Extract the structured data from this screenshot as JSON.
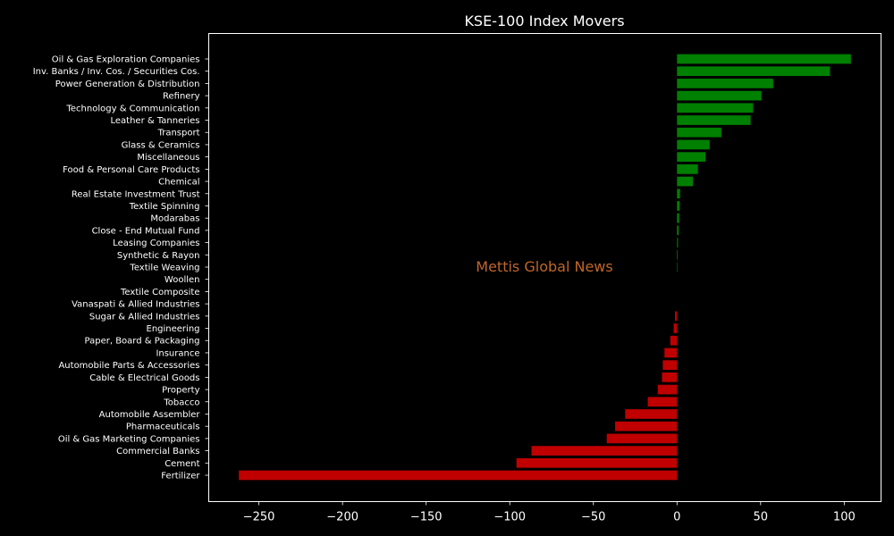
{
  "chart_data": {
    "type": "bar",
    "orientation": "horizontal",
    "title": "KSE-100 Index Movers",
    "watermark": "Mettis Global News",
    "xlabel": "",
    "ylabel": "",
    "xlim": [
      -280,
      122
    ],
    "xticks": [
      -250,
      -200,
      -150,
      -100,
      -50,
      0,
      50,
      100
    ],
    "xtick_labels": [
      "−250",
      "−200",
      "−150",
      "−100",
      "−50",
      "0",
      "50",
      "100"
    ],
    "grid": false,
    "legend": "none",
    "colors": {
      "positive": "#008000",
      "negative": "#c00000",
      "background": "#000000",
      "axes": "#ffffff",
      "text": "#ffffff",
      "watermark": "#c0662a"
    },
    "categories": [
      "Oil & Gas Exploration Companies",
      "Inv. Banks / Inv. Cos. / Securities Cos.",
      "Power Generation & Distribution",
      "Refinery",
      "Technology & Communication",
      "Leather & Tanneries",
      "Transport",
      "Glass & Ceramics",
      "Miscellaneous",
      "Food & Personal Care Products",
      "Chemical",
      "Real Estate Investment Trust",
      "Textile Spinning",
      "Modarabas",
      "Close - End Mutual Fund",
      "Leasing Companies",
      "Synthetic & Rayon",
      "Textile Weaving",
      "Woollen",
      "Textile Composite",
      "Vanaspati & Allied Industries",
      "Sugar & Allied Industries",
      "Engineering",
      "Paper, Board & Packaging",
      "Insurance",
      "Automobile Parts & Accessories",
      "Cable & Electrical Goods",
      "Property",
      "Tobacco",
      "Automobile Assembler",
      "Pharmaceuticals",
      "Oil & Gas Marketing Companies",
      "Commercial Banks",
      "Cement",
      "Fertilizer"
    ],
    "values": [
      104,
      91.5,
      57.5,
      50.5,
      45.5,
      44,
      26.5,
      19.5,
      17,
      12.5,
      9.5,
      1.8,
      1.6,
      1.3,
      1.0,
      0.6,
      0.4,
      0.3,
      0,
      0,
      0,
      -1.2,
      -2,
      -4,
      -7.5,
      -8.5,
      -9,
      -11.5,
      -17.5,
      -31,
      -37,
      -42,
      -87,
      -96,
      -262
    ]
  }
}
